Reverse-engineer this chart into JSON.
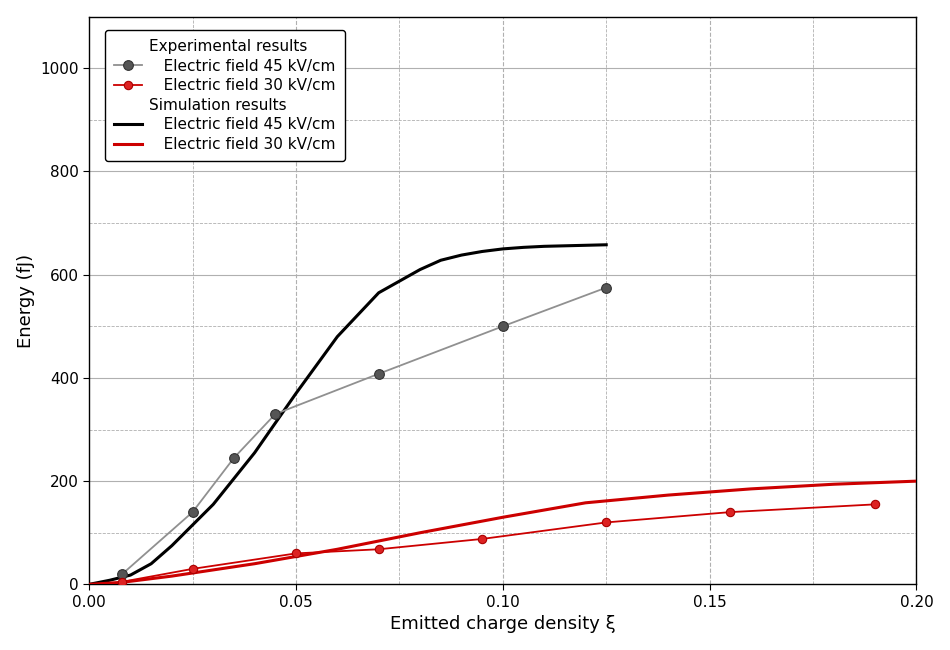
{
  "title": "",
  "xlabel": "Emitted charge density ξ",
  "ylabel": "Energy (fJ)",
  "xlim": [
    0.0,
    0.2
  ],
  "ylim": [
    0,
    1100
  ],
  "xticks": [
    0.0,
    0.05,
    0.1,
    0.15,
    0.2
  ],
  "yticks": [
    0,
    200,
    400,
    600,
    800,
    1000
  ],
  "exp_45_x": [
    0.008,
    0.025,
    0.035,
    0.045,
    0.07,
    0.1,
    0.125
  ],
  "exp_45_y": [
    20,
    140,
    245,
    330,
    408,
    500,
    575
  ],
  "exp_30_x": [
    0.008,
    0.025,
    0.05,
    0.07,
    0.095,
    0.125,
    0.155,
    0.19
  ],
  "exp_30_y": [
    5,
    30,
    60,
    68,
    88,
    120,
    140,
    155
  ],
  "sim_45_x": [
    0.0,
    0.005,
    0.01,
    0.015,
    0.02,
    0.025,
    0.03,
    0.035,
    0.04,
    0.05,
    0.06,
    0.07,
    0.08,
    0.085,
    0.09,
    0.095,
    0.1,
    0.105,
    0.11,
    0.115,
    0.12,
    0.125
  ],
  "sim_45_y": [
    0,
    8,
    18,
    40,
    75,
    115,
    155,
    205,
    255,
    370,
    480,
    565,
    610,
    628,
    638,
    645,
    650,
    653,
    655,
    656,
    657,
    658
  ],
  "sim_30_x": [
    0.0,
    0.008,
    0.02,
    0.04,
    0.06,
    0.08,
    0.1,
    0.12,
    0.14,
    0.16,
    0.18,
    0.2
  ],
  "sim_30_y": [
    0,
    4,
    16,
    40,
    68,
    100,
    130,
    158,
    173,
    185,
    194,
    200
  ],
  "color_exp_45": "#909090",
  "color_exp_30": "#cc0000",
  "color_sim_45": "#000000",
  "color_sim_30": "#cc0000",
  "legend_exp_header": "Experimental results",
  "legend_sim_header": "Simulation results",
  "legend_exp_45": "Electric field 45 kV/cm",
  "legend_exp_30": "Electric field 30 kV/cm",
  "legend_sim_45": "Electric field 45 kV/cm",
  "legend_sim_30": "Electric field 30 kV/cm",
  "background_color": "#ffffff",
  "grid_major_color": "#b0b0b0",
  "grid_minor_color": "#b0b0b0"
}
